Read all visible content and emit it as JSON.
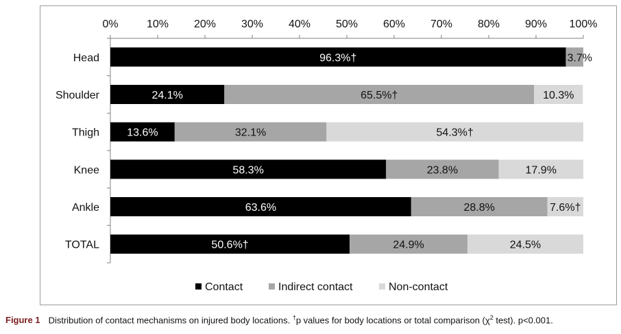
{
  "chart_data": {
    "type": "bar",
    "orientation": "horizontal",
    "stacked": true,
    "categories": [
      "Head",
      "Shoulder",
      "Thigh",
      "Knee",
      "Ankle",
      "TOTAL"
    ],
    "series": [
      {
        "name": "Contact",
        "color": "#000000",
        "values": [
          96.3,
          24.1,
          13.6,
          58.3,
          63.6,
          50.6
        ],
        "labels": [
          "96.3%†",
          "24.1%",
          "13.6%",
          "58.3%",
          "63.6%",
          "50.6%†"
        ]
      },
      {
        "name": "Indirect contact",
        "color": "#a6a6a6",
        "values": [
          3.7,
          65.5,
          32.1,
          23.8,
          28.8,
          24.9
        ],
        "labels": [
          "3.7%",
          "65.5%†",
          "32.1%",
          "23.8%",
          "28.8%",
          "24.9%"
        ]
      },
      {
        "name": "Non-contact",
        "color": "#d9d9d9",
        "values": [
          0,
          10.3,
          54.3,
          17.9,
          7.6,
          24.5
        ],
        "labels": [
          "",
          "10.3%",
          "54.3%†",
          "17.9%",
          "7.6%†",
          "24.5%"
        ]
      }
    ],
    "x_ticks": [
      "0%",
      "10%",
      "20%",
      "30%",
      "40%",
      "50%",
      "60%",
      "70%",
      "80%",
      "90%",
      "100%"
    ],
    "xlim": [
      0,
      100
    ],
    "legend_position": "bottom",
    "grid": false
  },
  "caption": {
    "label": "Figure 1",
    "part1": "Distribution of contact mechanisms on injured body locations. ",
    "dagger": "†",
    "part2": "p values for body locations or total comparison (χ",
    "sup": "2",
    "part3": " test). p<0.001."
  }
}
